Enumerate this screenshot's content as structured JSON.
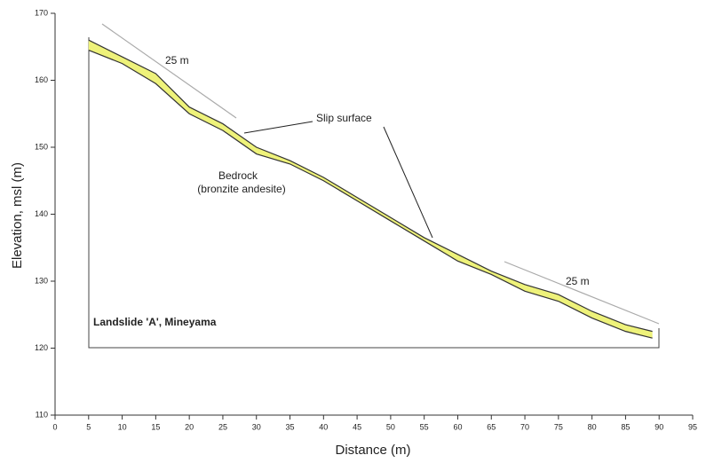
{
  "chart_data": {
    "type": "profile",
    "x_label": "Distance (m)",
    "y_label": "Elevation, msl (m)",
    "x": [
      5,
      10,
      15,
      20,
      25,
      30,
      35,
      40,
      45,
      50,
      55,
      60,
      65,
      70,
      75,
      80,
      85,
      89
    ],
    "series": [
      {
        "color": "#333333",
        "values": [
          166,
          163.5,
          161,
          156,
          153.5,
          150,
          148,
          145.5,
          142.5,
          139.5,
          136.5,
          134,
          131.5,
          129.5,
          128,
          125.5,
          123.5,
          122.5
        ]
      },
      {
        "color": "#333333",
        "values": [
          164.5,
          162.5,
          159.5,
          155,
          152.5,
          149,
          147.5,
          145,
          142,
          139,
          136,
          133,
          131,
          128.5,
          127,
          124.5,
          122.5,
          121.5
        ]
      }
    ],
    "fill_color": "#eef27a",
    "xlim": [
      0,
      95
    ],
    "xticks": [
      0,
      5,
      10,
      15,
      20,
      25,
      30,
      35,
      40,
      45,
      50,
      55,
      60,
      65,
      70,
      75,
      80,
      85,
      90,
      95
    ],
    "ylim": [
      110,
      170
    ],
    "yticks": [
      110,
      120,
      130,
      140,
      150,
      160,
      170
    ],
    "grid": false,
    "annotations": {
      "scale_upper": "25 m",
      "scale_lower": "25 m",
      "slip": "Slip surface",
      "bedrock": "Bedrock",
      "bedrock_type": "(bronzite andesite)",
      "site": "Landslide 'A', Mineyama"
    }
  }
}
